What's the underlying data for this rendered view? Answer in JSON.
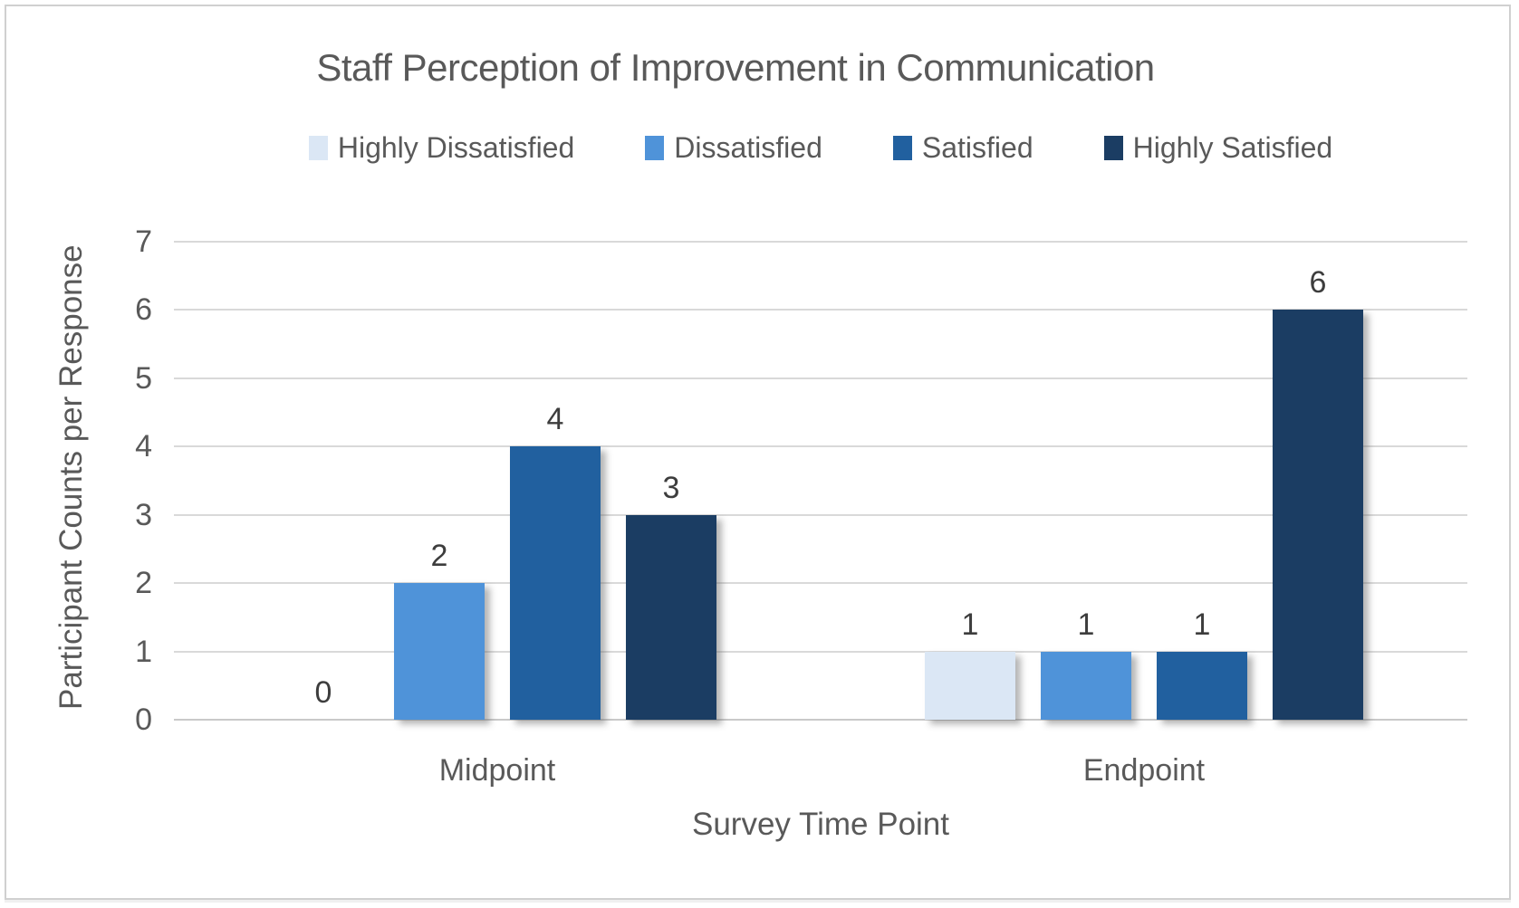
{
  "chart_data": {
    "type": "bar",
    "title": "Staff Perception of Improvement in Communication",
    "xlabel": "Survey Time Point",
    "ylabel": "Participant Counts per Response",
    "categories": [
      "Midpoint",
      "Endpoint"
    ],
    "series": [
      {
        "name": "Highly Dissatisfied",
        "color": "#dbe7f5",
        "values": [
          0,
          1
        ]
      },
      {
        "name": "Dissatisfied",
        "color": "#4f93d9",
        "values": [
          2,
          1
        ]
      },
      {
        "name": "Satisfied",
        "color": "#21609f",
        "values": [
          4,
          1
        ]
      },
      {
        "name": "Highly Satisfied",
        "color": "#1b3d63",
        "values": [
          3,
          6
        ]
      }
    ],
    "ylim": [
      0,
      7
    ],
    "yticks": [
      0,
      1,
      2,
      3,
      4,
      5,
      6,
      7
    ],
    "grid": true,
    "data_labels": true,
    "legend_position": "top"
  },
  "colors": {
    "axis_text": "#595959",
    "data_label_text": "#3d3d3d",
    "gridline": "#d9d9d9",
    "frame_border": "#d0d0d0"
  }
}
